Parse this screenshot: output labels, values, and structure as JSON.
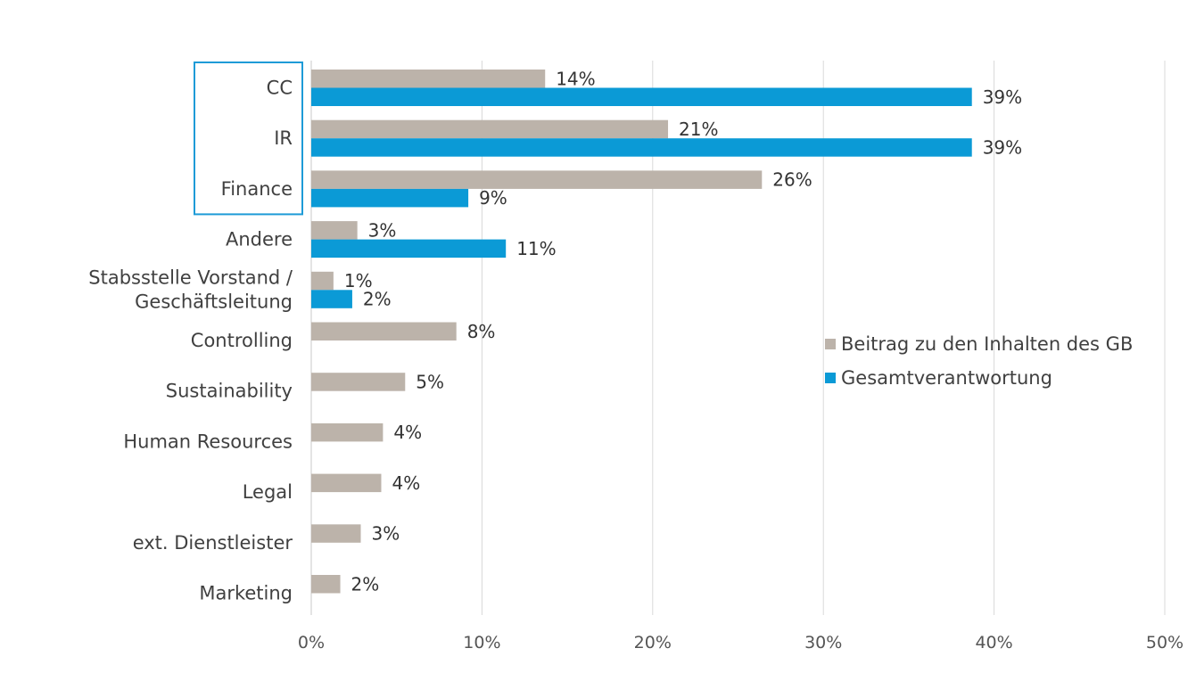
{
  "chart_data": {
    "type": "bar",
    "orientation": "horizontal",
    "categories": [
      "CC",
      "IR",
      "Finance",
      "Andere",
      [
        "Stabsstelle Vorstand /",
        "Geschäftsleitung"
      ],
      "Controlling",
      "Sustainability",
      "Human Resources",
      "Legal",
      "ext. Dienstleister",
      "Marketing"
    ],
    "series": [
      {
        "name": "Beitrag zu den Inhalten des GB",
        "color": "#BCB3AA",
        "values": [
          13.7,
          20.9,
          26.4,
          2.7,
          1.3,
          8.5,
          5.5,
          4.2,
          4.1,
          2.9,
          1.7
        ],
        "labels": [
          "14%",
          "21%",
          "26%",
          "3%",
          "1%",
          "8%",
          "5%",
          "4%",
          "4%",
          "3%",
          "2%"
        ]
      },
      {
        "name": "Gesamtverantwortung",
        "color": "#0B9AD6",
        "values": [
          38.7,
          38.7,
          9.2,
          11.4,
          2.4,
          null,
          null,
          null,
          null,
          null,
          null
        ],
        "labels": [
          "39%",
          "39%",
          "9%",
          "11%",
          "2%",
          null,
          null,
          null,
          null,
          null,
          null
        ]
      }
    ],
    "xlim": [
      0,
      50
    ],
    "xticks": [
      0,
      10,
      20,
      30,
      40,
      50
    ],
    "xtick_labels": [
      "0%",
      "10%",
      "20%",
      "30%",
      "40%",
      "50%"
    ],
    "grid": "vertical",
    "legend_position": "right",
    "highlight_box": {
      "categories": [
        "CC",
        "IR",
        "Finance"
      ],
      "color": "#1E9BD7"
    }
  }
}
